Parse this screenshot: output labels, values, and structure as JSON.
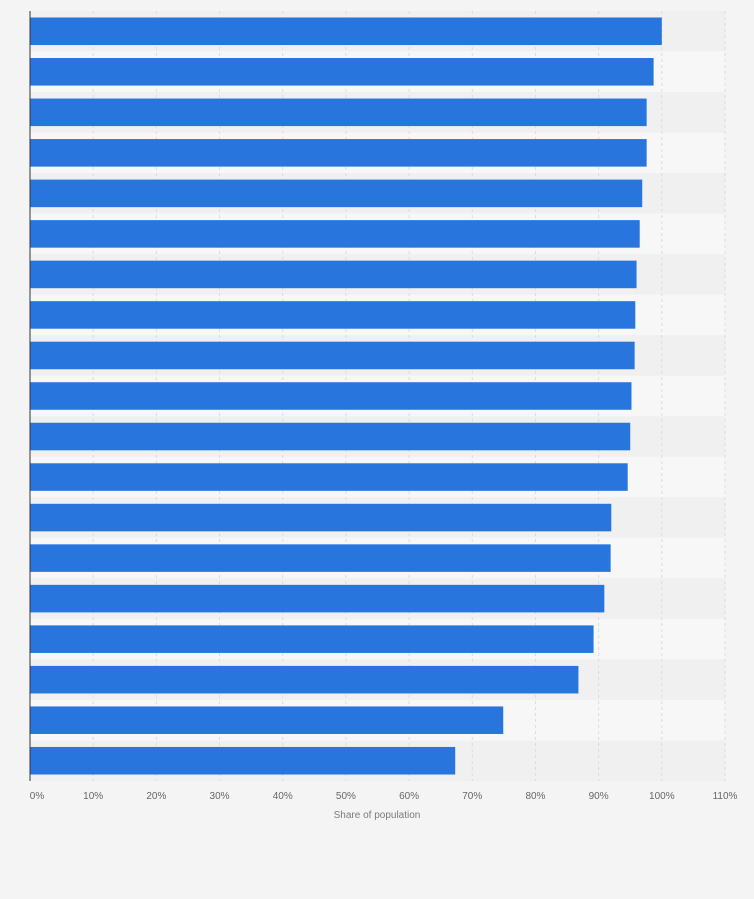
{
  "chart_data": {
    "type": "bar",
    "orientation": "horizontal",
    "xlabel": "Share of population",
    "ylabel": "",
    "xlim": [
      0,
      110
    ],
    "x_ticks": [
      0,
      10,
      20,
      30,
      40,
      50,
      60,
      70,
      80,
      90,
      100,
      110
    ],
    "x_tick_labels": [
      "0%",
      "10%",
      "20%",
      "30%",
      "40%",
      "50%",
      "60%",
      "70%",
      "80%",
      "90%",
      "100%",
      "110%"
    ],
    "values": [
      100,
      98.7,
      97.6,
      97.6,
      96.9,
      96.5,
      96.0,
      95.8,
      95.7,
      95.2,
      95.0,
      94.6,
      92.0,
      91.9,
      90.9,
      89.2,
      86.8,
      74.9,
      67.3
    ],
    "grid": true,
    "legend": "none",
    "colors": {
      "bar": "#2876dd",
      "band_light": "#f7f7f7",
      "band_dark": "#f0f0f0",
      "grid": "#dcdcdc",
      "axis": "#333333"
    }
  }
}
